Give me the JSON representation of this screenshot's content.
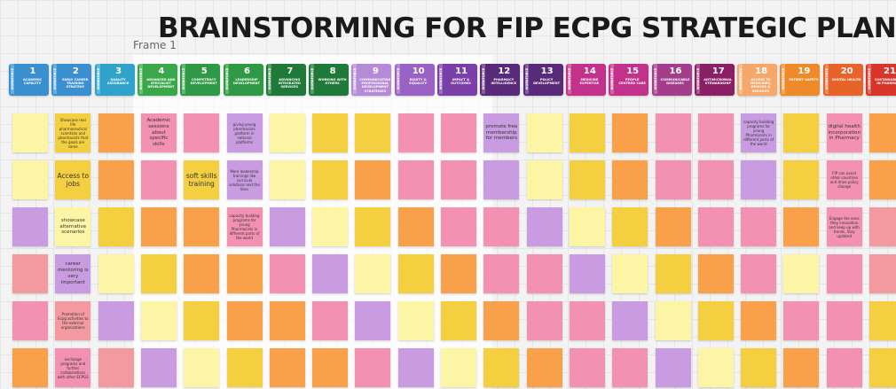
{
  "title": "BRAINSTORMING FOR FIP ECPG STRATEGIC PLAN!",
  "frame_label": "Frame 1",
  "tag": "WORKFORCE",
  "columns": [
    {
      "number": 1,
      "label": "ACADEMIC CAPACITY",
      "color": "#3a8fd0"
    },
    {
      "number": 2,
      "label": "EARLY CAREER TRAINING STRATEGY",
      "color": "#3a8fd0"
    },
    {
      "number": 3,
      "label": "QUALITY ASSURANCE",
      "color": "#2fa3c9"
    },
    {
      "number": 4,
      "label": "ADVANCED AND SPECIALIST DEVELOPMENT",
      "color": "#3aa84a"
    },
    {
      "number": 5,
      "label": "COMPETENCY DEVELOPMENT",
      "color": "#2f9a45"
    },
    {
      "number": 6,
      "label": "LEADERSHIP DEVELOPMENT",
      "color": "#2f9a45"
    },
    {
      "number": 7,
      "label": "ADVANCING INTEGRATED SERVICES",
      "color": "#1f7a3a"
    },
    {
      "number": 8,
      "label": "WORKING WITH OTHERS",
      "color": "#1f7a3a"
    },
    {
      "number": 9,
      "label": "COMMUNICATING PROFESSIONAL DEVELOPMENT STRATEGIES",
      "color": "#b58ad6"
    },
    {
      "number": 10,
      "label": "EQUITY & EQUALITY",
      "color": "#9a62c4"
    },
    {
      "number": 11,
      "label": "IMPACT & OUTCOMES",
      "color": "#7a3fa8"
    },
    {
      "number": 12,
      "label": "PHARMACY INTELLIGENCE",
      "color": "#5a2a7a"
    },
    {
      "number": 13,
      "label": "POLICY DEVELOPMENT",
      "color": "#5a2a7a"
    },
    {
      "number": 14,
      "label": "MEDICINE EXPERTISE",
      "color": "#c2318a"
    },
    {
      "number": 15,
      "label": "PEOPLE CENTRED CARE",
      "color": "#c2318a"
    },
    {
      "number": 16,
      "label": "COMMUNICABLE DISEASES",
      "color": "#a33d8c"
    },
    {
      "number": 17,
      "label": "ANTIMICROBIAL STEWARDSHIP",
      "color": "#8a1f66"
    },
    {
      "number": 18,
      "label": "ACCESS TO MEDICINES, DEVICES & SERVICES",
      "color": "#f5a86a"
    },
    {
      "number": 19,
      "label": "PATIENT SAFETY",
      "color": "#ef8a2a"
    },
    {
      "number": 20,
      "label": "DIGITAL HEALTH",
      "color": "#e8632a"
    },
    {
      "number": 21,
      "label": "SUSTAINABILITY IN PHARMACY",
      "color": "#d8362a"
    }
  ],
  "rows": [
    [
      {
        "color": "#fdf5a6"
      },
      {
        "color": "#f4cf3f",
        "text": "Showcase real life pharmaceutical scientists and pharmacists that the goals are same"
      },
      {
        "color": "#f9a04b"
      },
      {
        "color": "#f291b1",
        "text": "Academic sessions about specific skills"
      },
      {
        "color": "#f291b1"
      },
      {
        "color": "#c99be0",
        "text": "giving young pharmacists platform in national platforms"
      },
      {
        "color": "#fdf5a6"
      },
      {
        "color": "#f4cf3f"
      },
      {
        "color": "#f4cf3f"
      },
      {
        "color": "#f291b1"
      },
      {
        "color": "#f291b1"
      },
      {
        "color": "#c99be0",
        "text": "promote free membership for members"
      },
      {
        "color": "#fdf5a6"
      },
      {
        "color": "#f4cf3f"
      },
      {
        "color": "#f9a04b"
      },
      {
        "color": "#f291b1"
      },
      {
        "color": "#f291b1"
      },
      {
        "color": "#c99be0",
        "text": "capacity building programs for young Pharmacists in different parts of the world"
      },
      {
        "color": "#f4cf3f"
      },
      {
        "color": "#f291b1",
        "text": "digital health incorporation in Pharmacy"
      },
      {
        "color": "#f9a04b"
      }
    ],
    [
      {
        "color": "#fdf5a6"
      },
      {
        "color": "#f4cf3f",
        "text": "Access to jobs"
      },
      {
        "color": "#f9a04b"
      },
      {
        "color": "#f291b1"
      },
      {
        "color": "#f4cf3f",
        "text": "soft skills training"
      },
      {
        "color": "#c99be0",
        "text": "More leadership trainings like curricula solutions and the likes"
      },
      {
        "color": "#fdf5a6"
      },
      {
        "color": "#f4cf3f"
      },
      {
        "color": "#f9a04b"
      },
      {
        "color": "#f291b1"
      },
      {
        "color": "#f291b1"
      },
      {
        "color": "#c99be0"
      },
      {
        "color": "#fdf5a6"
      },
      {
        "color": "#f4cf3f"
      },
      {
        "color": "#f9a04b"
      },
      {
        "color": "#f291b1"
      },
      {
        "color": "#f291b1"
      },
      {
        "color": "#c99be0"
      },
      {
        "color": "#f4cf3f"
      },
      {
        "color": "#f291b1",
        "text": "FIP can assist other countries and drive policy change"
      },
      {
        "color": "#f9a04b"
      }
    ],
    [
      {
        "color": "#c99be0"
      },
      {
        "color": "#fdf5a6",
        "text": "showcase alternative scenarios"
      },
      {
        "color": "#f4cf3f"
      },
      {
        "color": "#f9a04b"
      },
      {
        "color": "#f9a04b"
      },
      {
        "color": "#f291b1",
        "text": "capacity building programs for young Pharmacists in different parts of the world"
      },
      {
        "color": "#c99be0"
      },
      {
        "color": "#fdf5a6"
      },
      {
        "color": "#f4cf3f"
      },
      {
        "color": "#f9a04b"
      },
      {
        "color": "#f291b1"
      },
      {
        "color": "#f291b1"
      },
      {
        "color": "#c99be0"
      },
      {
        "color": "#fdf5a6"
      },
      {
        "color": "#f4cf3f"
      },
      {
        "color": "#f9a04b"
      },
      {
        "color": "#f291b1"
      },
      {
        "color": "#f291b1"
      },
      {
        "color": "#f9a04b"
      },
      {
        "color": "#f291b1",
        "text": "Engage the ones they innovation and keep up with trends. Stay updated"
      },
      {
        "color": "#f39aa0"
      }
    ],
    [
      {
        "color": "#f39aa0"
      },
      {
        "color": "#c99be0",
        "text": "career mentoring is very important"
      },
      {
        "color": "#fdf5a6"
      },
      {
        "color": "#f4cf3f"
      },
      {
        "color": "#f9a04b"
      },
      {
        "color": "#f9a04b"
      },
      {
        "color": "#f291b1"
      },
      {
        "color": "#c99be0"
      },
      {
        "color": "#fdf5a6"
      },
      {
        "color": "#f4cf3f"
      },
      {
        "color": "#f9a04b"
      },
      {
        "color": "#f291b1"
      },
      {
        "color": "#f291b1"
      },
      {
        "color": "#c99be0"
      },
      {
        "color": "#fdf5a6"
      },
      {
        "color": "#f4cf3f"
      },
      {
        "color": "#f9a04b"
      },
      {
        "color": "#f291b1"
      },
      {
        "color": "#fdf5a6"
      },
      {
        "color": "#f291b1"
      },
      {
        "color": "#f39aa0"
      }
    ],
    [
      {
        "color": "#f291b1"
      },
      {
        "color": "#f39aa0",
        "text": "Promotion of Ecpg activities to the external organizations"
      },
      {
        "color": "#c99be0"
      },
      {
        "color": "#fdf5a6"
      },
      {
        "color": "#f4cf3f"
      },
      {
        "color": "#f9a04b"
      },
      {
        "color": "#f9a04b"
      },
      {
        "color": "#f291b1"
      },
      {
        "color": "#c99be0"
      },
      {
        "color": "#fdf5a6"
      },
      {
        "color": "#f4cf3f"
      },
      {
        "color": "#f9a04b"
      },
      {
        "color": "#f291b1"
      },
      {
        "color": "#f291b1"
      },
      {
        "color": "#c99be0"
      },
      {
        "color": "#fdf5a6"
      },
      {
        "color": "#f4cf3f"
      },
      {
        "color": "#f9a04b"
      },
      {
        "color": "#f291b1"
      },
      {
        "color": "#f291b1"
      },
      {
        "color": "#f4cf3f"
      }
    ],
    [
      {
        "color": "#f9a04b"
      },
      {
        "color": "#f291b1",
        "text": "exchange programs and further collaborations with other ECPGS"
      },
      {
        "color": "#f39aa0"
      },
      {
        "color": "#c99be0"
      },
      {
        "color": "#fdf5a6"
      },
      {
        "color": "#f4cf3f"
      },
      {
        "color": "#f9a04b"
      },
      {
        "color": "#f9a04b"
      },
      {
        "color": "#f291b1"
      },
      {
        "color": "#c99be0"
      },
      {
        "color": "#fdf5a6"
      },
      {
        "color": "#f4cf3f"
      },
      {
        "color": "#f9a04b"
      },
      {
        "color": "#f291b1"
      },
      {
        "color": "#f291b1"
      },
      {
        "color": "#c99be0"
      },
      {
        "color": "#fdf5a6"
      },
      {
        "color": "#f4cf3f"
      },
      {
        "color": "#f9a04b"
      },
      {
        "color": "#f291b1"
      },
      {
        "color": "#f4cf3f"
      }
    ]
  ]
}
